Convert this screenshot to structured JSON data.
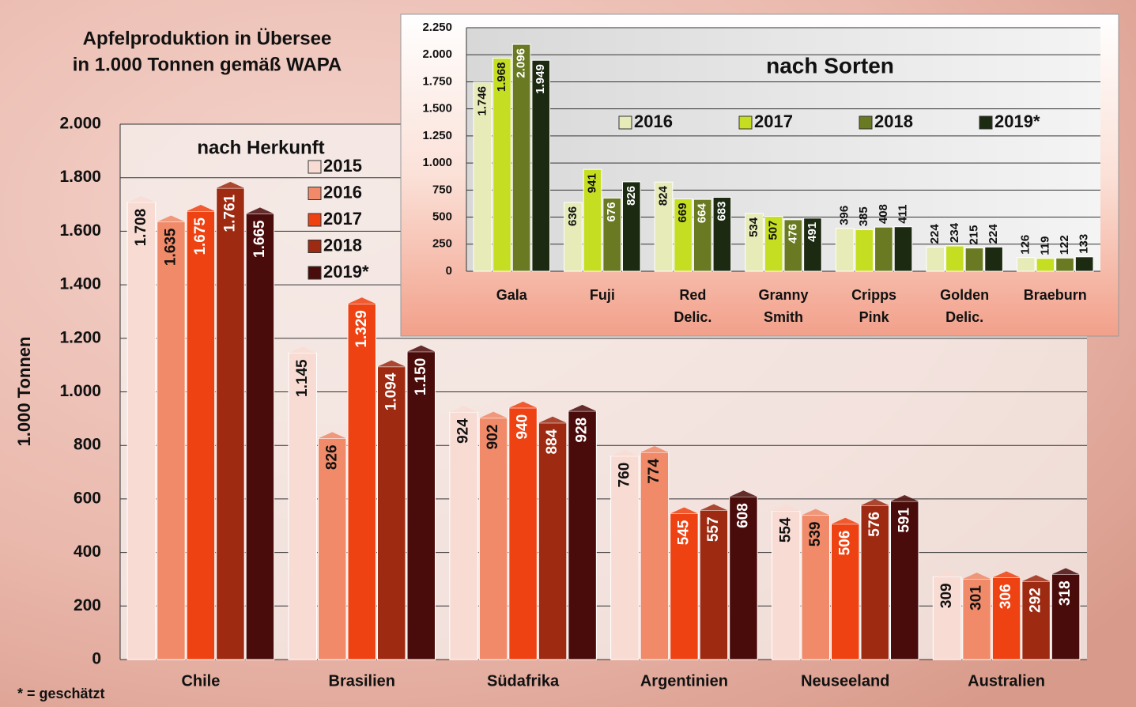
{
  "chart_data": [
    {
      "type": "bar",
      "title": "Apfelproduktion in Übersee",
      "subtitle": "in 1.000 Tonnen gemäß WAPA",
      "annotation": "nach Herkunft",
      "y_label": "1.000 Tonnen",
      "footnote": "* = geschätzt",
      "categories": [
        "Chile",
        "Brasilien",
        "Südafrika",
        "Argentinien",
        "Neuseeland",
        "Australien"
      ],
      "series": [
        {
          "name": "2015",
          "color": "#f8dcd4",
          "values": [
            1708,
            1145,
            924,
            760,
            554,
            309
          ],
          "value_labels": [
            "1.708",
            "1.145",
            "924",
            "760",
            "554",
            "309"
          ]
        },
        {
          "name": "2016",
          "color": "#f08a68",
          "values": [
            1635,
            826,
            902,
            774,
            539,
            301
          ],
          "value_labels": [
            "1.635",
            "826",
            "902",
            "774",
            "539",
            "301"
          ]
        },
        {
          "name": "2017",
          "color": "#ee4212",
          "values": [
            1675,
            1329,
            940,
            545,
            506,
            306
          ],
          "value_labels": [
            "1.675",
            "1.329",
            "940",
            "545",
            "506",
            "306"
          ]
        },
        {
          "name": "2018",
          "color": "#9e2a12",
          "values": [
            1761,
            1094,
            884,
            557,
            576,
            292
          ],
          "value_labels": [
            "1.761",
            "1.094",
            "884",
            "557",
            "576",
            "292"
          ]
        },
        {
          "name": "2019*",
          "color": "#4a0c0a",
          "values": [
            1665,
            1150,
            928,
            608,
            591,
            318
          ],
          "value_labels": [
            "1.665",
            "1.150",
            "928",
            "608",
            "591",
            "318"
          ]
        }
      ],
      "ylim": [
        0,
        2000
      ],
      "yticks": [
        0,
        200,
        400,
        600,
        800,
        {
          "value": 1000,
          "label": "1.000"
        },
        {
          "value": 1200,
          "label": "1.200"
        },
        {
          "value": 1400,
          "label": "1.400"
        },
        {
          "value": 1600,
          "label": "1.600"
        },
        {
          "value": 1800,
          "label": "1.800"
        },
        {
          "value": 2000,
          "label": "2.000"
        }
      ],
      "grid": true,
      "legend": "upper left"
    },
    {
      "type": "bar",
      "title": "nach Sorten",
      "categories": [
        [
          "Gala"
        ],
        [
          "Fuji"
        ],
        [
          "Red",
          "Delic."
        ],
        [
          "Granny",
          "Smith"
        ],
        [
          "Cripps",
          "Pink"
        ],
        [
          "Golden",
          "Delic."
        ],
        [
          "Braeburn"
        ]
      ],
      "series": [
        {
          "name": "2016",
          "color": "#e6ebb8",
          "values": [
            1746,
            636,
            824,
            534,
            396,
            224,
            126
          ],
          "value_labels": [
            "1.746",
            "636",
            "824",
            "534",
            "396",
            "224",
            "126"
          ]
        },
        {
          "name": "2017",
          "color": "#c6de22",
          "values": [
            1968,
            941,
            669,
            507,
            385,
            234,
            119
          ],
          "value_labels": [
            "1.968",
            "941",
            "669",
            "507",
            "385",
            "234",
            "119"
          ]
        },
        {
          "name": "2018",
          "color": "#6a7a22",
          "values": [
            2096,
            676,
            664,
            476,
            408,
            215,
            122
          ],
          "value_labels": [
            "2.096",
            "676",
            "664",
            "476",
            "408",
            "215",
            "122"
          ]
        },
        {
          "name": "2019*",
          "color": "#1c2a12",
          "values": [
            1949,
            826,
            683,
            491,
            411,
            224,
            133
          ],
          "value_labels": [
            "1.949",
            "826",
            "683",
            "491",
            "411",
            "224",
            "133"
          ]
        }
      ],
      "ylim": [
        0,
        2250
      ],
      "yticks": [
        0,
        250,
        500,
        750,
        {
          "value": 1000,
          "label": "1.000"
        },
        {
          "value": 1250,
          "label": "1.250"
        },
        {
          "value": 1500,
          "label": "1.500"
        },
        {
          "value": 1750,
          "label": "1.750"
        },
        {
          "value": 2000,
          "label": "2.000"
        },
        {
          "value": 2250,
          "label": "2.250"
        }
      ],
      "grid": true,
      "legend": "upper center"
    }
  ]
}
